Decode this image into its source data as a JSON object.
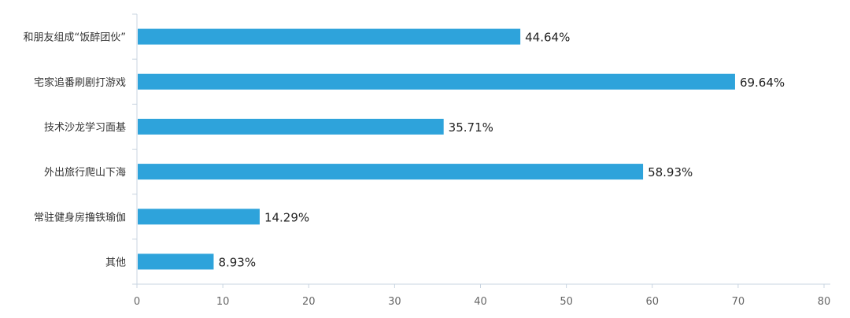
{
  "chart_data": {
    "type": "bar",
    "orientation": "horizontal",
    "categories": [
      "和朋友组成“饭醉团伙”",
      "宅家追番刷剧打游戏",
      "技术沙龙学习面基",
      "外出旅行爬山下海",
      "常驻健身房撸铁瑜伽",
      "其他"
    ],
    "values": [
      44.64,
      69.64,
      35.71,
      58.93,
      14.29,
      8.93
    ],
    "value_labels": [
      "44.64%",
      "69.64%",
      "35.71%",
      "58.93%",
      "14.29%",
      "8.93%"
    ],
    "xlim": [
      0,
      80
    ],
    "x_ticks": [
      0,
      10,
      20,
      30,
      40,
      50,
      60,
      70,
      80
    ],
    "grid": false,
    "bar_color": "#2ea3db",
    "axis_color": "#c8d4e0"
  }
}
